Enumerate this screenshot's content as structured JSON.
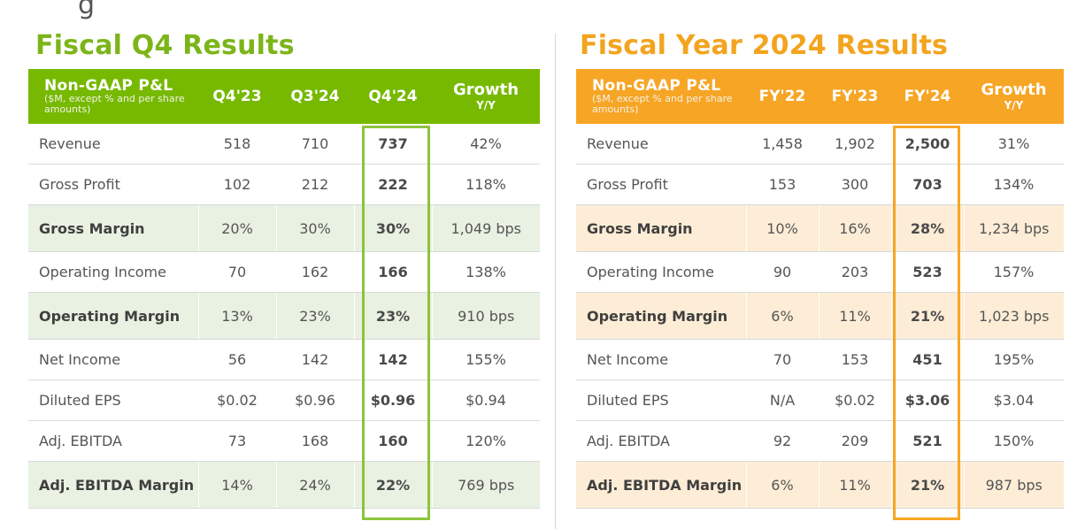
{
  "q4": {
    "title": "Fiscal Q4 Results",
    "header": {
      "metric_title": "Non-GAAP P&L",
      "metric_sub": "($M, except % and per share amounts)",
      "cols": [
        "Q4'23",
        "Q3'24",
        "Q4'24"
      ],
      "growth_title": "Growth",
      "growth_sub": "Y/Y"
    },
    "rows": [
      {
        "label": "Revenue",
        "values": [
          "518",
          "710",
          "737",
          "42%"
        ]
      },
      {
        "label": "Gross Profit",
        "values": [
          "102",
          "212",
          "222",
          "118%"
        ]
      },
      {
        "label": "Gross Margin",
        "values": [
          "20%",
          "30%",
          "30%",
          "1,049 bps"
        ]
      },
      {
        "label": "Operating Income",
        "values": [
          "70",
          "162",
          "166",
          "138%"
        ]
      },
      {
        "label": "Operating Margin",
        "values": [
          "13%",
          "23%",
          "23%",
          "910 bps"
        ]
      },
      {
        "label": "Net Income",
        "values": [
          "56",
          "142",
          "142",
          "155%"
        ]
      },
      {
        "label": "Diluted EPS",
        "values": [
          "$0.02",
          "$0.96",
          "$0.96",
          "$0.94"
        ]
      },
      {
        "label": "Adj. EBITDA",
        "values": [
          "73",
          "168",
          "160",
          "120%"
        ]
      },
      {
        "label": "Adj. EBITDA Margin",
        "values": [
          "14%",
          "24%",
          "22%",
          "769 bps"
        ]
      }
    ]
  },
  "fy": {
    "title": "Fiscal Year 2024 Results",
    "header": {
      "metric_title": "Non-GAAP P&L",
      "metric_sub": "($M, except % and per share amounts)",
      "cols": [
        "FY'22",
        "FY'23",
        "FY'24"
      ],
      "growth_title": "Growth",
      "growth_sub": "Y/Y"
    },
    "rows": [
      {
        "label": "Revenue",
        "values": [
          "1,458",
          "1,902",
          "2,500",
          "31%"
        ]
      },
      {
        "label": "Gross Profit",
        "values": [
          "153",
          "300",
          "703",
          "134%"
        ]
      },
      {
        "label": "Gross Margin",
        "values": [
          "10%",
          "16%",
          "28%",
          "1,234 bps"
        ]
      },
      {
        "label": "Operating Income",
        "values": [
          "90",
          "203",
          "523",
          "157%"
        ]
      },
      {
        "label": "Operating Margin",
        "values": [
          "6%",
          "11%",
          "21%",
          "1,023 bps"
        ]
      },
      {
        "label": "Net Income",
        "values": [
          "70",
          "153",
          "451",
          "195%"
        ]
      },
      {
        "label": "Diluted EPS",
        "values": [
          "N/A",
          "$0.02",
          "$3.06",
          "$3.04"
        ]
      },
      {
        "label": "Adj. EBITDA",
        "values": [
          "92",
          "209",
          "521",
          "150%"
        ]
      },
      {
        "label": "Adj. EBITDA Margin",
        "values": [
          "6%",
          "11%",
          "21%",
          "987 bps"
        ]
      }
    ]
  },
  "colors": {
    "q4_accent": "#76b900",
    "fy_accent": "#f7a525",
    "q4_shade": "#e9f1e2",
    "fy_shade": "#fdedd6"
  }
}
